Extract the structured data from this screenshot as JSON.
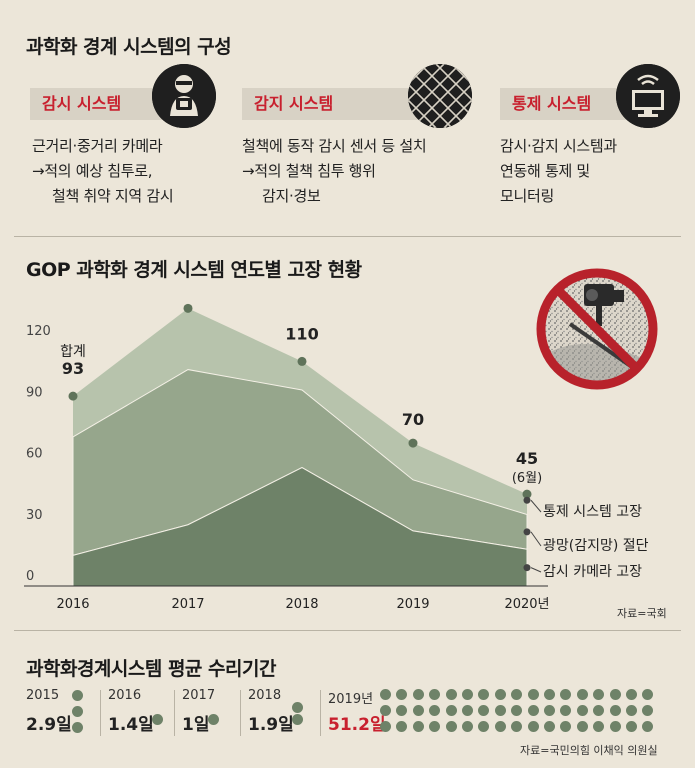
{
  "section1": {
    "title": "과학화 경계 시스템의 구성",
    "systems": [
      {
        "name": "감시 시스템",
        "icon": "camera-operator-icon",
        "lines": [
          "근거리·중거리 카메라",
          "→적의 예상 침투로,",
          "철책 취약 지역 감시"
        ]
      },
      {
        "name": "감지 시스템",
        "icon": "fence-net-icon",
        "lines": [
          "철책에 동작 감시 센서 등 설치",
          "→적의 철책 침투 행위",
          "감지·경보"
        ]
      },
      {
        "name": "통제 시스템",
        "icon": "monitor-signal-icon",
        "lines": [
          "감시·감지 시스템과",
          "연동해 통제 및",
          "모니터링"
        ]
      }
    ]
  },
  "colors": {
    "accent_red": "#c8202e",
    "control_layer": "#b7c3ac",
    "fence_layer": "#96a68c",
    "camera_layer": "#6e8268",
    "dot": "#6e8268",
    "highlight_red": "#c8202e"
  },
  "chart_data": {
    "type": "area",
    "title": "GOP 과학화 경계 시스템 연도별 고장 현황",
    "x": [
      "2016",
      "2017",
      "2018",
      "2019",
      "2020년"
    ],
    "ylim": [
      0,
      150
    ],
    "yticks": [
      "0",
      "30",
      "60",
      "90",
      "120"
    ],
    "stacked": true,
    "series": [
      {
        "name": "감시 카메라 고장",
        "values": [
          15,
          30,
          58,
          27,
          18
        ]
      },
      {
        "name": "광망(감지망) 절단",
        "values": [
          58,
          76,
          38,
          25,
          17
        ]
      },
      {
        "name": "통제 시스템 고장",
        "values": [
          20,
          30,
          14,
          18,
          10
        ]
      }
    ],
    "totals": [
      "93",
      "136",
      "110",
      "70",
      "45"
    ],
    "total_label": "합계",
    "last_note": "(6월)",
    "source": "자료=국회",
    "grid": false,
    "legend": "right"
  },
  "section3": {
    "title": "과학화경계시스템 평균 수리기간",
    "items": [
      {
        "year": "2015",
        "value": "2.9일",
        "dots": 3,
        "highlight": false
      },
      {
        "year": "2016",
        "value": "1.4일",
        "dots": 1,
        "highlight": false
      },
      {
        "year": "2017",
        "value": "1일",
        "dots": 1,
        "highlight": false
      },
      {
        "year": "2018",
        "value": "1.9일",
        "dots": 2,
        "highlight": false
      },
      {
        "year": "2019년",
        "value": "51.2일",
        "dots": 51,
        "highlight": true
      }
    ],
    "source": "자료=국민의힘 이채익 의원실"
  }
}
